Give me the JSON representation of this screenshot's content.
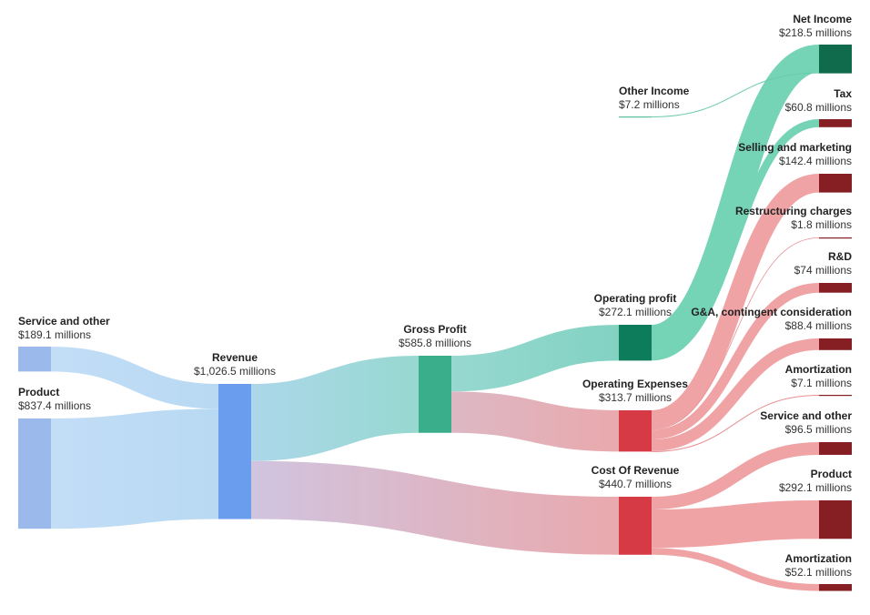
{
  "chart_data": {
    "type": "sankey",
    "unit": "millions",
    "nodes": [
      {
        "id": "service_in",
        "name": "Service and other",
        "value": "$189.1 millions",
        "amount": 189.1,
        "color": "#9BBAEB"
      },
      {
        "id": "product_in",
        "name": "Product",
        "value": "$837.4 millions",
        "amount": 837.4,
        "color": "#9BBAEB"
      },
      {
        "id": "revenue",
        "name": "Revenue",
        "value": "$1,026.5 millions",
        "amount": 1026.5,
        "color": "#6A9DEE"
      },
      {
        "id": "gross_profit",
        "name": "Gross Profit",
        "value": "$585.8 millions",
        "amount": 585.8,
        "color": "#3AAD8A"
      },
      {
        "id": "operating_profit",
        "name": "Operating profit",
        "value": "$272.1 millions",
        "amount": 272.1,
        "color": "#0D7C5A"
      },
      {
        "id": "operating_expenses",
        "name": "Operating Expenses",
        "value": "$313.7 millions",
        "amount": 313.7,
        "color": "#D63B45"
      },
      {
        "id": "cost_of_revenue",
        "name": "Cost Of Revenue",
        "value": "$440.7 millions",
        "amount": 440.7,
        "color": "#D63B45"
      },
      {
        "id": "other_income",
        "name": "Other Income",
        "value": "$7.2 millions",
        "amount": 7.2,
        "color": "#5CBFA0"
      },
      {
        "id": "net_income",
        "name": "Net Income",
        "value": "$218.5 millions",
        "amount": 218.5,
        "color": "#0F6B4C"
      },
      {
        "id": "tax",
        "name": "Tax",
        "value": "$60.8 millions",
        "amount": 60.8,
        "color": "#861F24"
      },
      {
        "id": "selling_marketing",
        "name": "Selling and marketing",
        "value": "$142.4 millions",
        "amount": 142.4,
        "color": "#861F24"
      },
      {
        "id": "restructuring",
        "name": "Restructuring charges",
        "value": "$1.8 millions",
        "amount": 1.8,
        "color": "#861F24"
      },
      {
        "id": "rnd",
        "name": "R&D",
        "value": "$74 millions",
        "amount": 74,
        "color": "#861F24"
      },
      {
        "id": "ga",
        "name": "G&A, contingent consideration",
        "value": "$88.4 millions",
        "amount": 88.4,
        "color": "#861F24"
      },
      {
        "id": "amortization_opex",
        "name": "Amortization",
        "value": "$7.1 millions",
        "amount": 7.1,
        "color": "#861F24"
      },
      {
        "id": "service_cost",
        "name": "Service and other",
        "value": "$96.5 millions",
        "amount": 96.5,
        "color": "#861F24"
      },
      {
        "id": "product_cost",
        "name": "Product",
        "value": "$292.1 millions",
        "amount": 292.1,
        "color": "#861F24"
      },
      {
        "id": "amortization_cost",
        "name": "Amortization",
        "value": "$52.1 millions",
        "amount": 52.1,
        "color": "#861F24"
      }
    ],
    "links": [
      {
        "source": "service_in",
        "target": "revenue",
        "value": 189.1
      },
      {
        "source": "product_in",
        "target": "revenue",
        "value": 837.4
      },
      {
        "source": "revenue",
        "target": "gross_profit",
        "value": 585.8
      },
      {
        "source": "revenue",
        "target": "cost_of_revenue",
        "value": 440.7
      },
      {
        "source": "gross_profit",
        "target": "operating_profit",
        "value": 272.1
      },
      {
        "source": "gross_profit",
        "target": "operating_expenses",
        "value": 313.7
      },
      {
        "source": "operating_profit",
        "target": "net_income",
        "value": 211.3
      },
      {
        "source": "operating_profit",
        "target": "tax",
        "value": 60.8
      },
      {
        "source": "other_income",
        "target": "net_income",
        "value": 7.2
      },
      {
        "source": "operating_expenses",
        "target": "selling_marketing",
        "value": 142.4
      },
      {
        "source": "operating_expenses",
        "target": "restructuring",
        "value": 1.8
      },
      {
        "source": "operating_expenses",
        "target": "rnd",
        "value": 74
      },
      {
        "source": "operating_expenses",
        "target": "ga",
        "value": 88.4
      },
      {
        "source": "operating_expenses",
        "target": "amortization_opex",
        "value": 7.1
      },
      {
        "source": "cost_of_revenue",
        "target": "service_cost",
        "value": 96.5
      },
      {
        "source": "cost_of_revenue",
        "target": "product_cost",
        "value": 292.1
      },
      {
        "source": "cost_of_revenue",
        "target": "amortization_cost",
        "value": 52.1
      }
    ]
  }
}
